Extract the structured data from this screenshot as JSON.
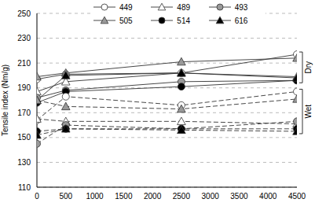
{
  "chart_data": {
    "type": "line",
    "x_label": null,
    "y_label": "Tensile index (Nm/g)",
    "x": [
      0,
      500,
      2500,
      4500
    ],
    "xlim": [
      0,
      4500
    ],
    "xticks": [
      0,
      500,
      1000,
      1500,
      2000,
      2500,
      3000,
      3500,
      4000,
      4500
    ],
    "ylim": [
      110,
      250
    ],
    "yticks": [
      110,
      130,
      150,
      170,
      190,
      210,
      230,
      250
    ],
    "grid": true,
    "legend": "top",
    "series": [
      {
        "name": "449",
        "color": "#ffffff",
        "marker": "circle",
        "line_style": "solid",
        "values": [
          197,
          201,
          202,
          217
        ]
      },
      {
        "name": "489",
        "color": "#ffffff",
        "marker": "triangle",
        "line_style": "solid",
        "values": [
          187,
          195,
          202,
          199
        ]
      },
      {
        "name": "493",
        "color": "#999999",
        "marker": "circle",
        "line_style": "solid",
        "values": [
          182,
          188,
          195,
          196
        ]
      },
      {
        "name": "505",
        "color": "#999999",
        "marker": "triangle",
        "line_style": "solid",
        "values": [
          199,
          202,
          211,
          214
        ]
      },
      {
        "name": "514",
        "color": "#000000",
        "marker": "circle",
        "line_style": "solid",
        "values": [
          178,
          187,
          191,
          196
        ]
      },
      {
        "name": "616",
        "color": "#000000",
        "marker": "triangle",
        "line_style": "solid",
        "values": [
          180,
          200,
          202,
          198
        ]
      },
      {
        "name": "449",
        "color": "#ffffff",
        "marker": "circle",
        "line_style": "dashed",
        "values": [
          164,
          183,
          176,
          187
        ]
      },
      {
        "name": "489",
        "color": "#ffffff",
        "marker": "triangle",
        "line_style": "dashed",
        "values": [
          165,
          163,
          163,
          161
        ]
      },
      {
        "name": "493",
        "color": "#999999",
        "marker": "circle",
        "line_style": "dashed",
        "values": [
          145,
          160,
          157,
          163
        ]
      },
      {
        "name": "505",
        "color": "#999999",
        "marker": "triangle",
        "line_style": "dashed",
        "values": [
          180,
          175,
          173,
          181
        ]
      },
      {
        "name": "514",
        "color": "#000000",
        "marker": "circle",
        "line_style": "dashed",
        "values": [
          155,
          157,
          157,
          157
        ]
      },
      {
        "name": "616",
        "color": "#000000",
        "marker": "triangle",
        "line_style": "dashed",
        "values": [
          152,
          157,
          156,
          155
        ]
      }
    ],
    "annotations": [
      {
        "text": "Dry",
        "line_style": "solid"
      },
      {
        "text": "Wet",
        "line_style": "dashed"
      }
    ]
  }
}
